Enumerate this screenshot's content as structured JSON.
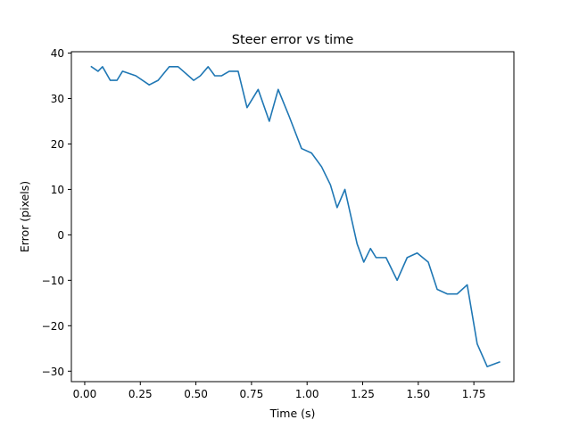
{
  "chart_data": {
    "type": "line",
    "title": "Steer error vs time",
    "xlabel": "Time (s)",
    "ylabel": "Error (pixels)",
    "xlim": [
      -0.06,
      1.93
    ],
    "ylim": [
      -32.3,
      40.3
    ],
    "grid": false,
    "x_ticks": [
      0.0,
      0.25,
      0.5,
      0.75,
      1.0,
      1.25,
      1.5,
      1.75
    ],
    "x_tick_labels": [
      "0.00",
      "0.25",
      "0.50",
      "0.75",
      "1.00",
      "1.25",
      "1.50",
      "1.75"
    ],
    "y_ticks": [
      -30,
      -20,
      -10,
      0,
      10,
      20,
      30,
      40
    ],
    "y_tick_labels": [
      "−30",
      "−20",
      "−10",
      "0",
      "10",
      "20",
      "30",
      "40"
    ],
    "series": [
      {
        "color": "#1f77b4",
        "x": [
          0.03,
          0.06,
          0.08,
          0.115,
          0.145,
          0.17,
          0.23,
          0.29,
          0.33,
          0.38,
          0.42,
          0.49,
          0.52,
          0.555,
          0.585,
          0.615,
          0.65,
          0.69,
          0.73,
          0.78,
          0.83,
          0.87,
          0.92,
          0.975,
          1.02,
          1.065,
          1.105,
          1.135,
          1.17,
          1.225,
          1.255,
          1.285,
          1.31,
          1.355,
          1.405,
          1.45,
          1.495,
          1.545,
          1.585,
          1.63,
          1.675,
          1.72,
          1.765,
          1.81,
          1.865
        ],
        "y": [
          37,
          36,
          37,
          34,
          34,
          36,
          35,
          33,
          34,
          37,
          37,
          34,
          35,
          37,
          35,
          35,
          36,
          36,
          28,
          32,
          25,
          32,
          26,
          19,
          18,
          15,
          11,
          6,
          10,
          -2,
          -6,
          -3,
          -5,
          -5,
          -10,
          -5,
          -4,
          -6,
          -12,
          -13,
          -13,
          -11,
          -24,
          -29,
          -28
        ]
      }
    ]
  }
}
